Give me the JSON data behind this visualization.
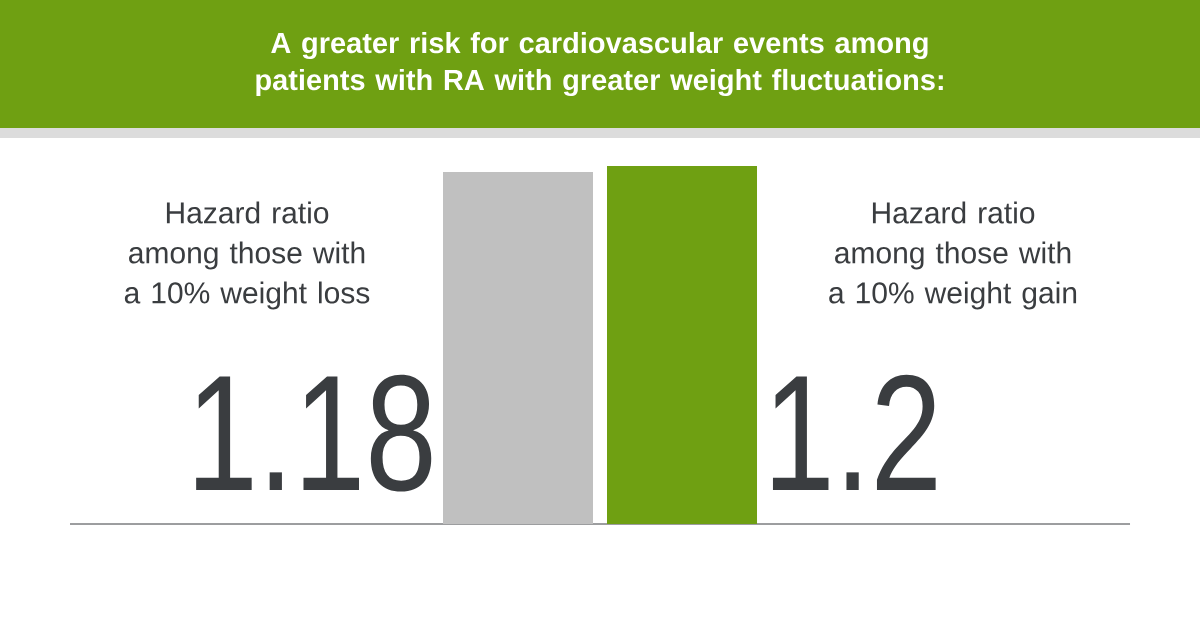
{
  "chart_data": {
    "type": "bar",
    "title": "A greater risk for cardiovascular events among patients with RA with greater weight fluctuations:",
    "categories": [
      "Hazard ratio among those with a 10% weight loss",
      "Hazard ratio among those with a 10% weight gain"
    ],
    "values": [
      1.18,
      1.2
    ],
    "colors": [
      "#c0c0c0",
      "#6fa012"
    ],
    "data_labels": true
  }
}
